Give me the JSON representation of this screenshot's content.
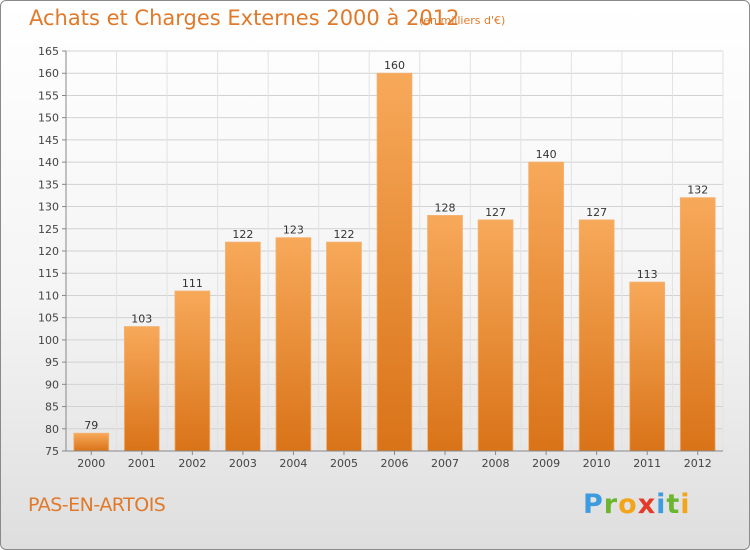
{
  "header": {
    "title": "Achats et Charges Externes 2000 à 2012",
    "subtitle": "(en milliers d'€)"
  },
  "footer": {
    "place": "PAS-EN-ARTOIS",
    "logo_letters": [
      {
        "char": "P",
        "color": "#3d9be0"
      },
      {
        "char": "r",
        "color": "#6cb52f"
      },
      {
        "char": "o",
        "color": "#f2a51a"
      },
      {
        "char": "x",
        "color": "#e53a2a"
      },
      {
        "char": "i",
        "color": "#3d9be0"
      },
      {
        "char": "t",
        "color": "#6cb52f"
      },
      {
        "char": "i",
        "color": "#f2a51a"
      }
    ]
  },
  "chart_data": {
    "type": "bar",
    "categories": [
      "2000",
      "2001",
      "2002",
      "2003",
      "2004",
      "2005",
      "2006",
      "2007",
      "2008",
      "2009",
      "2010",
      "2011",
      "2012"
    ],
    "values": [
      79,
      103,
      111,
      122,
      123,
      122,
      160,
      128,
      127,
      140,
      127,
      113,
      132
    ],
    "ylim": [
      75,
      165
    ],
    "yticks": [
      75,
      80,
      85,
      90,
      95,
      100,
      105,
      110,
      115,
      120,
      125,
      130,
      135,
      140,
      145,
      150,
      155,
      160,
      165
    ],
    "grid": true,
    "bar_color_top": "#f7a95a",
    "bar_color_bottom": "#d97318"
  }
}
